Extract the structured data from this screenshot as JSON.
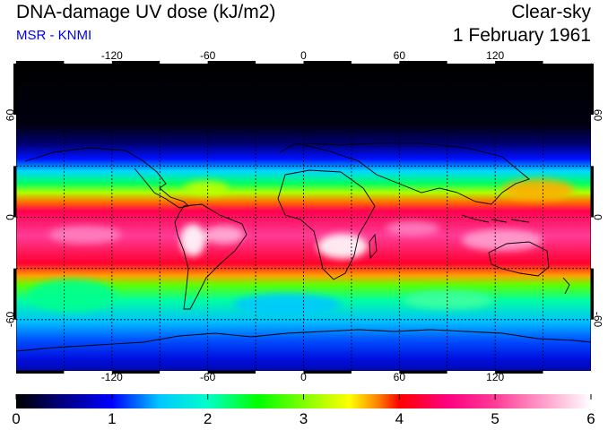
{
  "header": {
    "title": "DNA-damage UV dose (kJ/m2)",
    "credit": "MSR - KNMI",
    "condition": "Clear-sky",
    "date": "1 February 1961"
  },
  "map": {
    "lon_ticks": [
      {
        "value": -120,
        "label": "-120"
      },
      {
        "value": -60,
        "label": "-60"
      },
      {
        "value": 0,
        "label": "0"
      },
      {
        "value": 60,
        "label": "60"
      },
      {
        "value": 120,
        "label": "120"
      }
    ],
    "lat_ticks": [
      {
        "value": 60,
        "label": "60"
      },
      {
        "value": 0,
        "label": "0"
      },
      {
        "value": -60,
        "label": "-60"
      }
    ]
  },
  "colorbar": {
    "min": 0,
    "max": 6,
    "labels": [
      "0",
      "1",
      "2",
      "3",
      "4",
      "5",
      "6"
    ],
    "colors": {
      "v0": "#000000",
      "v0_5": "#000080",
      "v1": "#0000ff",
      "v1_5": "#00c8ff",
      "v2": "#00ffc8",
      "v2_5": "#00ff00",
      "v3": "#80ff00",
      "v3_5": "#ffff00",
      "v3_8": "#ff8000",
      "v4": "#ff0000",
      "v4_5": "#ff0080",
      "v5": "#ff3c96",
      "v6": "#ffffff"
    }
  }
}
